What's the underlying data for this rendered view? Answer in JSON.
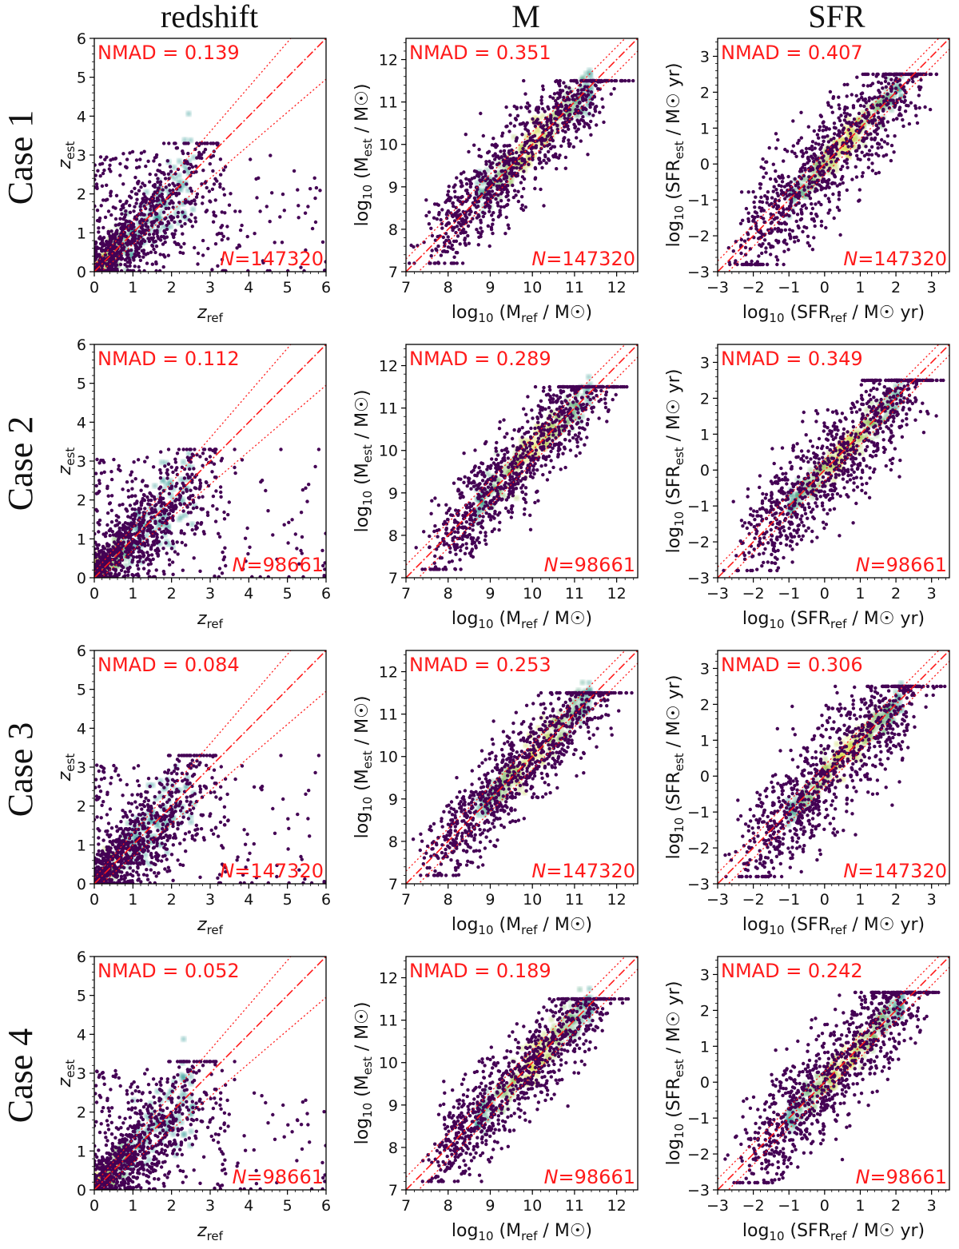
{
  "column_titles": [
    "redshift",
    "M",
    "SFR"
  ],
  "row_labels": [
    "Case 1",
    "Case 2",
    "Case 3",
    "Case 4"
  ],
  "chart_data": [
    {
      "type": "scatter",
      "row": 0,
      "col": 0,
      "quantity": "redshift",
      "case": "Case 1",
      "nmad_label": "NMAD = 0.139",
      "n_label": "147320",
      "xlim": [
        0,
        6
      ],
      "ylim": [
        0,
        6
      ],
      "xticks": [
        "0",
        "1",
        "2",
        "3",
        "4",
        "5",
        "6"
      ],
      "yticks": [
        "0",
        "1",
        "2",
        "3",
        "4",
        "5",
        "6"
      ],
      "xlabel": "z",
      "xlabel_sub": "ref",
      "ylabel": "z",
      "ylabel_sub": "est",
      "diag_scale": 0.15
    },
    {
      "type": "scatter",
      "row": 0,
      "col": 1,
      "quantity": "M",
      "case": "Case 1",
      "nmad_label": "NMAD = 0.351",
      "n_label": "147320",
      "xlim": [
        7,
        12.5
      ],
      "ylim": [
        7,
        12.5
      ],
      "xticks": [
        "7",
        "8",
        "9",
        "10",
        "11",
        "12"
      ],
      "yticks": [
        "7",
        "8",
        "9",
        "10",
        "11",
        "12"
      ],
      "xlabel": "log",
      "xlabel_sub": "10",
      "xlabel_rest": " (M",
      "xlabel_sub2": "ref",
      "xlabel_tail": " / M☉)",
      "ylabel": "log",
      "ylabel_sub": "10",
      "ylabel_rest": " (M",
      "ylabel_sub2": "est",
      "ylabel_tail": " / M☉)",
      "diag_offset": 0.3
    },
    {
      "type": "scatter",
      "row": 0,
      "col": 2,
      "quantity": "SFR",
      "case": "Case 1",
      "nmad_label": "NMAD = 0.407",
      "n_label": "147320",
      "xlim": [
        -3,
        3.5
      ],
      "ylim": [
        -3,
        3.5
      ],
      "xticks": [
        "−3",
        "−2",
        "−1",
        "0",
        "1",
        "2",
        "3"
      ],
      "yticks": [
        "−3",
        "−2",
        "−1",
        "0",
        "1",
        "2",
        "3"
      ],
      "xlabel": "log",
      "xlabel_sub": "10",
      "xlabel_rest": " (SFR",
      "xlabel_sub2": "ref",
      "xlabel_tail": " / M☉ yr)",
      "ylabel": "log",
      "ylabel_sub": "10",
      "ylabel_rest": " (SFR",
      "ylabel_sub2": "est",
      "ylabel_tail": " / M☉ yr)",
      "diag_offset": 0.3
    },
    {
      "type": "scatter",
      "row": 1,
      "col": 0,
      "quantity": "redshift",
      "case": "Case 2",
      "nmad_label": "NMAD = 0.112",
      "n_label": "98661",
      "xlim": [
        0,
        6
      ],
      "ylim": [
        0,
        6
      ],
      "xticks": [
        "0",
        "1",
        "2",
        "3",
        "4",
        "5",
        "6"
      ],
      "yticks": [
        "0",
        "1",
        "2",
        "3",
        "4",
        "5",
        "6"
      ],
      "xlabel": "z",
      "xlabel_sub": "ref",
      "ylabel": "z",
      "ylabel_sub": "est",
      "diag_scale": 0.15
    },
    {
      "type": "scatter",
      "row": 1,
      "col": 1,
      "quantity": "M",
      "case": "Case 2",
      "nmad_label": "NMAD = 0.289",
      "n_label": "98661",
      "xlim": [
        7,
        12.5
      ],
      "ylim": [
        7,
        12.5
      ],
      "xticks": [
        "7",
        "8",
        "9",
        "10",
        "11",
        "12"
      ],
      "yticks": [
        "7",
        "8",
        "9",
        "10",
        "11",
        "12"
      ],
      "xlabel": "log",
      "xlabel_sub": "10",
      "xlabel_rest": " (M",
      "xlabel_sub2": "ref",
      "xlabel_tail": " / M☉)",
      "ylabel": "log",
      "ylabel_sub": "10",
      "ylabel_rest": " (M",
      "ylabel_sub2": "est",
      "ylabel_tail": " / M☉)",
      "diag_offset": 0.3
    },
    {
      "type": "scatter",
      "row": 1,
      "col": 2,
      "quantity": "SFR",
      "case": "Case 2",
      "nmad_label": "NMAD = 0.349",
      "n_label": "98661",
      "xlim": [
        -3,
        3.5
      ],
      "ylim": [
        -3,
        3.5
      ],
      "xticks": [
        "−3",
        "−2",
        "−1",
        "0",
        "1",
        "2",
        "3"
      ],
      "yticks": [
        "−3",
        "−2",
        "−1",
        "0",
        "1",
        "2",
        "3"
      ],
      "xlabel": "log",
      "xlabel_sub": "10",
      "xlabel_rest": " (SFR",
      "xlabel_sub2": "ref",
      "xlabel_tail": " / M☉ yr)",
      "ylabel": "log",
      "ylabel_sub": "10",
      "ylabel_rest": " (SFR",
      "ylabel_sub2": "est",
      "ylabel_tail": " / M☉ yr)",
      "diag_offset": 0.3
    },
    {
      "type": "scatter",
      "row": 2,
      "col": 0,
      "quantity": "redshift",
      "case": "Case 3",
      "nmad_label": "NMAD = 0.084",
      "n_label": "147320",
      "xlim": [
        0,
        6
      ],
      "ylim": [
        0,
        6
      ],
      "xticks": [
        "0",
        "1",
        "2",
        "3",
        "4",
        "5",
        "6"
      ],
      "yticks": [
        "0",
        "1",
        "2",
        "3",
        "4",
        "5",
        "6"
      ],
      "xlabel": "z",
      "xlabel_sub": "ref",
      "ylabel": "z",
      "ylabel_sub": "est",
      "diag_scale": 0.15
    },
    {
      "type": "scatter",
      "row": 2,
      "col": 1,
      "quantity": "M",
      "case": "Case 3",
      "nmad_label": "NMAD = 0.253",
      "n_label": "147320",
      "xlim": [
        7,
        12.5
      ],
      "ylim": [
        7,
        12.5
      ],
      "xticks": [
        "7",
        "8",
        "9",
        "10",
        "11",
        "12"
      ],
      "yticks": [
        "7",
        "8",
        "9",
        "10",
        "11",
        "12"
      ],
      "xlabel": "log",
      "xlabel_sub": "10",
      "xlabel_rest": " (M",
      "xlabel_sub2": "ref",
      "xlabel_tail": " / M☉)",
      "ylabel": "log",
      "ylabel_sub": "10",
      "ylabel_rest": " (M",
      "ylabel_sub2": "est",
      "ylabel_tail": " / M☉)",
      "diag_offset": 0.3
    },
    {
      "type": "scatter",
      "row": 2,
      "col": 2,
      "quantity": "SFR",
      "case": "Case 3",
      "nmad_label": "NMAD = 0.306",
      "n_label": "147320",
      "xlim": [
        -3,
        3.5
      ],
      "ylim": [
        -3,
        3.5
      ],
      "xticks": [
        "−3",
        "−2",
        "−1",
        "0",
        "1",
        "2",
        "3"
      ],
      "yticks": [
        "−3",
        "−2",
        "−1",
        "0",
        "1",
        "2",
        "3"
      ],
      "xlabel": "log",
      "xlabel_sub": "10",
      "xlabel_rest": " (SFR",
      "xlabel_sub2": "ref",
      "xlabel_tail": " / M☉ yr)",
      "ylabel": "log",
      "ylabel_sub": "10",
      "ylabel_rest": " (SFR",
      "ylabel_sub2": "est",
      "ylabel_tail": " / M☉ yr)",
      "diag_offset": 0.3
    },
    {
      "type": "scatter",
      "row": 3,
      "col": 0,
      "quantity": "redshift",
      "case": "Case 4",
      "nmad_label": "NMAD = 0.052",
      "n_label": "98661",
      "xlim": [
        0,
        6
      ],
      "ylim": [
        0,
        6
      ],
      "xticks": [
        "0",
        "1",
        "2",
        "3",
        "4",
        "5",
        "6"
      ],
      "yticks": [
        "0",
        "1",
        "2",
        "3",
        "4",
        "5",
        "6"
      ],
      "xlabel": "z",
      "xlabel_sub": "ref",
      "ylabel": "z",
      "ylabel_sub": "est",
      "diag_scale": 0.15
    },
    {
      "type": "scatter",
      "row": 3,
      "col": 1,
      "quantity": "M",
      "case": "Case 4",
      "nmad_label": "NMAD = 0.189",
      "n_label": "98661",
      "xlim": [
        7,
        12.5
      ],
      "ylim": [
        7,
        12.5
      ],
      "xticks": [
        "7",
        "8",
        "9",
        "10",
        "11",
        "12"
      ],
      "yticks": [
        "7",
        "8",
        "9",
        "10",
        "11",
        "12"
      ],
      "xlabel": "log",
      "xlabel_sub": "10",
      "xlabel_rest": " (M",
      "xlabel_sub2": "ref",
      "xlabel_tail": " / M☉)",
      "ylabel": "log",
      "ylabel_sub": "10",
      "ylabel_rest": " (M",
      "ylabel_sub2": "est",
      "ylabel_tail": " / M☉)",
      "diag_offset": 0.3
    },
    {
      "type": "scatter",
      "row": 3,
      "col": 2,
      "quantity": "SFR",
      "case": "Case 4",
      "nmad_label": "NMAD = 0.242",
      "n_label": "98661",
      "xlim": [
        -3,
        3.5
      ],
      "ylim": [
        -3,
        3.5
      ],
      "xticks": [
        "−3",
        "−2",
        "−1",
        "0",
        "1",
        "2",
        "3"
      ],
      "yticks": [
        "−3",
        "−2",
        "−1",
        "0",
        "1",
        "2",
        "3"
      ],
      "xlabel": "log",
      "xlabel_sub": "10",
      "xlabel_rest": " (SFR",
      "xlabel_sub2": "ref",
      "xlabel_tail": " / M☉ yr)",
      "ylabel": "log",
      "ylabel_sub": "10",
      "ylabel_rest": " (SFR",
      "ylabel_sub2": "est",
      "ylabel_tail": " / M☉ yr)",
      "diag_offset": 0.3
    }
  ],
  "colors": {
    "annotation": "#ff1a1a",
    "density_low": "#440154",
    "density_mid": "#21918c",
    "density_high": "#fde725",
    "axes": "#000000"
  }
}
